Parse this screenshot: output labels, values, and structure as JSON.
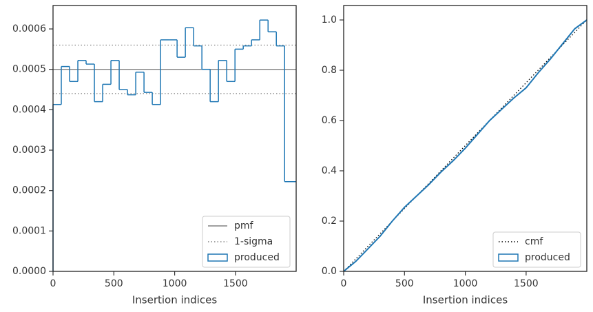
{
  "chart_data": [
    {
      "type": "histogram",
      "xlabel": "Insertion indices",
      "bins": [
        0,
        68,
        136,
        204,
        272,
        340,
        408,
        476,
        544,
        612,
        680,
        748,
        816,
        884,
        952,
        1020,
        1088,
        1156,
        1224,
        1292,
        1360,
        1428,
        1496,
        1564,
        1632,
        1700,
        1768,
        1836,
        1904,
        1999
      ],
      "series": [
        {
          "name": "produced",
          "color": "#1f77b4",
          "values": [
            0.000413,
            0.000507,
            0.00047,
            0.000522,
            0.000513,
            0.00042,
            0.000463,
            0.000522,
            0.00045,
            0.000437,
            0.000493,
            0.000443,
            0.000413,
            0.000573,
            0.000573,
            0.00053,
            0.000603,
            0.000558,
            0.0005,
            0.00042,
            0.000522,
            0.00047,
            0.00055,
            0.000558,
            0.000573,
            0.000622,
            0.000593,
            0.000558,
            0.000222
          ]
        }
      ],
      "hlines": [
        {
          "name": "pmf",
          "color": "#808080",
          "style": "solid",
          "values": [
            0.0005
          ]
        },
        {
          "name": "1-sigma",
          "color": "#808080",
          "style": "dotted",
          "values": [
            0.00044,
            0.00056
          ]
        }
      ],
      "xlim": [
        0,
        1999
      ],
      "xticks": [
        0,
        500,
        1000,
        1500
      ],
      "ylim": [
        0,
        0.000658
      ],
      "yticks": [
        {
          "value": 0,
          "label": "0.0000"
        },
        0.0001,
        0.0002,
        0.0003,
        0.0004,
        0.0005,
        0.0006
      ],
      "legend": "lower right"
    },
    {
      "type": "line",
      "xlabel": "Insertion indices",
      "series": [
        {
          "name": "cmf",
          "color": "#000000",
          "style": "dotted",
          "x": [
            0,
            1999
          ],
          "values": [
            0,
            1
          ]
        },
        {
          "name": "produced",
          "color": "#1f77b4",
          "style": "solid",
          "x": [
            0,
            100,
            200,
            300,
            400,
            500,
            600,
            700,
            800,
            900,
            1000,
            1100,
            1200,
            1300,
            1400,
            1500,
            1600,
            1700,
            1800,
            1900,
            1999
          ],
          "values": [
            0,
            0.04,
            0.09,
            0.14,
            0.2,
            0.255,
            0.3,
            0.345,
            0.395,
            0.44,
            0.49,
            0.545,
            0.6,
            0.645,
            0.69,
            0.73,
            0.79,
            0.845,
            0.905,
            0.965,
            1
          ]
        }
      ],
      "xlim": [
        0,
        1999
      ],
      "xticks": [
        0,
        500,
        1000,
        1500
      ],
      "ylim": [
        0,
        1.0575
      ],
      "yticks": [
        {
          "value": 0,
          "label": "0.0"
        },
        {
          "value": 0.2,
          "label": "0.2"
        },
        {
          "value": 0.4,
          "label": "0.4"
        },
        {
          "value": 0.6,
          "label": "0.6"
        },
        {
          "value": 0.8,
          "label": "0.8"
        },
        {
          "value": 1,
          "label": "1.0"
        }
      ],
      "legend": "lower right"
    }
  ]
}
